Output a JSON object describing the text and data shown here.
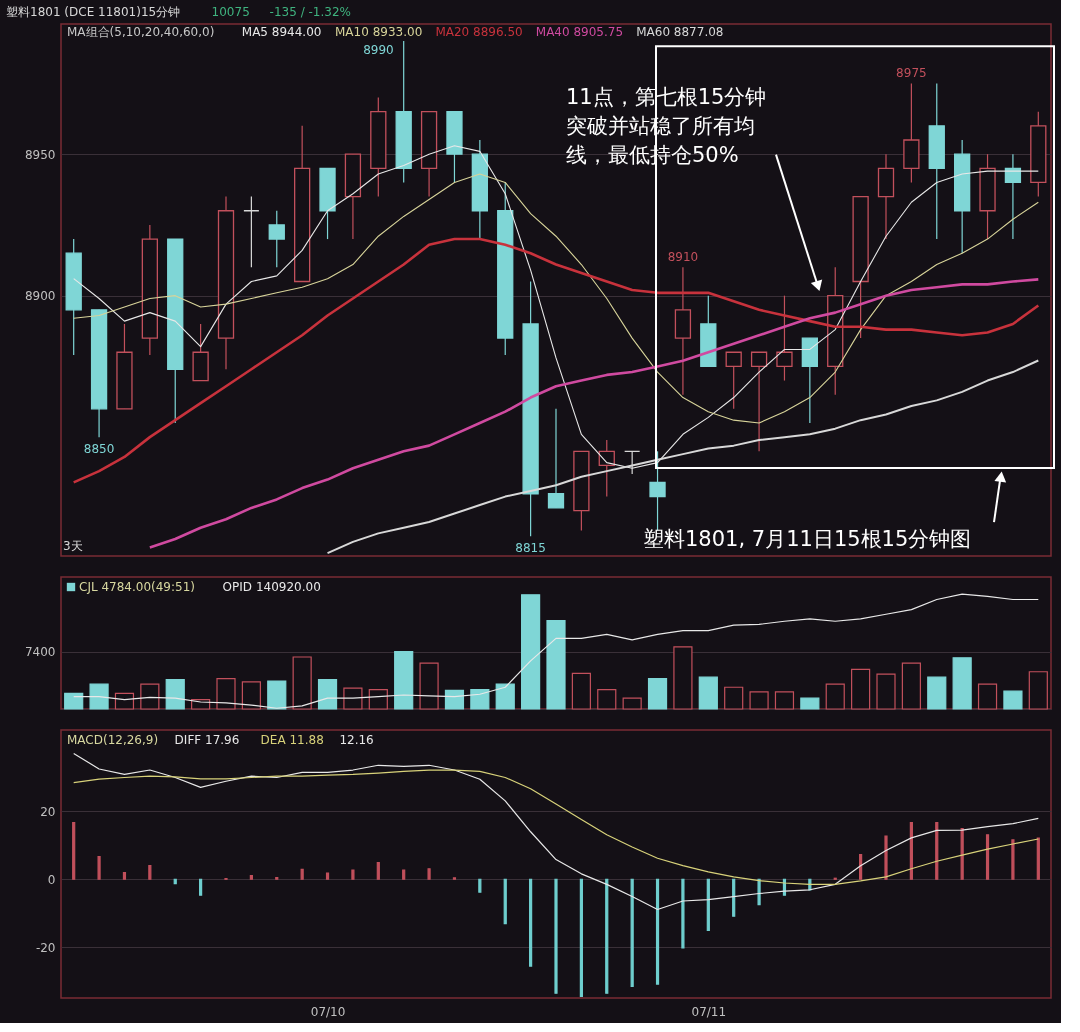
{
  "chart_data": [
    {
      "type": "candlestick",
      "title": "塑料1801 (DCE 11801)15分钟",
      "legend_title": "MA组合(5,10,20,40,60,0)",
      "legend": "top left",
      "grid": "y",
      "categories": [
        null,
        null,
        null,
        null,
        null,
        null,
        null,
        null,
        null,
        null,
        null,
        null,
        null,
        null,
        null,
        null,
        null,
        null,
        null,
        null,
        null,
        null,
        null,
        null,
        null,
        null,
        null,
        null,
        null,
        null,
        null,
        null,
        null,
        null,
        null,
        null,
        null,
        null,
        null
      ],
      "ohlc": [
        [
          8915,
          8920,
          8879,
          8895
        ],
        [
          8895,
          8895,
          8850,
          8860
        ],
        [
          8860,
          8890,
          8860,
          8880
        ],
        [
          8885,
          8925,
          8879,
          8920
        ],
        [
          8920,
          8920,
          8855,
          8874
        ],
        [
          8870,
          8890,
          8870,
          8880
        ],
        [
          8885,
          8935,
          8874,
          8930
        ],
        [
          8930,
          8935,
          8910,
          8930
        ],
        [
          8925,
          8930,
          8910,
          8920
        ],
        [
          8905,
          8960,
          8905,
          8945
        ],
        [
          8945,
          8945,
          8920,
          8930
        ],
        [
          8935,
          8950,
          8920,
          8950
        ],
        [
          8945,
          8970,
          8935,
          8965
        ],
        [
          8965,
          8990,
          8940,
          8945
        ],
        [
          8945,
          8965,
          8935,
          8965
        ],
        [
          8965,
          8965,
          8940,
          8950
        ],
        [
          8950,
          8955,
          8920,
          8930
        ],
        [
          8930,
          8940,
          8879,
          8885
        ],
        [
          8890,
          8905,
          8815,
          8830
        ],
        [
          8830,
          8860,
          8825,
          8825
        ],
        [
          8824,
          8845,
          8817,
          8845
        ],
        [
          8840,
          8849,
          8829,
          8845
        ],
        [
          8845,
          8845,
          8837,
          8845
        ],
        [
          8834,
          8845,
          8817,
          8829
        ],
        [
          8885,
          8910,
          8865,
          8895
        ],
        [
          8890,
          8900,
          8875,
          8875
        ],
        [
          8875,
          8880,
          8860,
          8880
        ],
        [
          8875,
          8880,
          8845,
          8880
        ],
        [
          8875,
          8900,
          8870,
          8880
        ],
        [
          8885,
          8885,
          8855,
          8875
        ],
        [
          8875,
          8910,
          8865,
          8900
        ],
        [
          8905,
          8935,
          8885,
          8935
        ],
        [
          8935,
          8950,
          8920,
          8945
        ],
        [
          8945,
          8975,
          8940,
          8955
        ],
        [
          8960,
          8975,
          8920,
          8945
        ],
        [
          8950,
          8955,
          8915,
          8930
        ],
        [
          8930,
          8950,
          8920,
          8945
        ],
        [
          8945,
          8950,
          8920,
          8940
        ],
        [
          8940,
          8965,
          8935,
          8960
        ]
      ],
      "colors": [
        "#7fd6d6",
        "#7fd6d6",
        "#c2505c",
        "#c2505c",
        "#7fd6d6",
        "#c2505c",
        "#c2505c",
        "#d8d8d8",
        "#7fd6d6",
        "#c2505c",
        "#7fd6d6",
        "#c2505c",
        "#c2505c",
        "#7fd6d6",
        "#c2505c",
        "#7fd6d6",
        "#7fd6d6",
        "#7fd6d6",
        "#7fd6d6",
        "#7fd6d6",
        "#c2505c",
        "#c2505c",
        "#d8d8d8",
        "#7fd6d6",
        "#c2505c",
        "#7fd6d6",
        "#c2505c",
        "#c2505c",
        "#c2505c",
        "#7fd6d6",
        "#c2505c",
        "#c2505c",
        "#c2505c",
        "#c2505c",
        "#7fd6d6",
        "#7fd6d6",
        "#c2505c",
        "#7fd6d6",
        "#c2505c"
      ],
      "value_labels": [
        null,
        "8850",
        null,
        null,
        null,
        null,
        null,
        null,
        null,
        null,
        null,
        null,
        null,
        "8990",
        null,
        null,
        null,
        null,
        "8815",
        null,
        null,
        null,
        null,
        null,
        "8910",
        null,
        null,
        null,
        null,
        null,
        null,
        null,
        null,
        "8975",
        null,
        null,
        null,
        null,
        null
      ],
      "series": [
        {
          "name": "MA5 8944.00",
          "type": "line",
          "color": "#e8e8e8",
          "values": [
            8906,
            8899,
            8891,
            8894,
            8891,
            8882,
            8897,
            8905,
            8907,
            8916,
            8930,
            8936,
            8943,
            8946,
            8950,
            8953,
            8951,
            8936,
            8909,
            8878,
            8851,
            8841,
            8839,
            8841,
            8851,
            8857,
            8864,
            8873,
            8881,
            8881,
            8888,
            8905,
            8921,
            8933,
            8940,
            8943,
            8944,
            8944,
            8944
          ]
        },
        {
          "name": "MA10 8933.00",
          "type": "line",
          "color": "#d8d49a",
          "values": [
            8892,
            8893,
            8896,
            8899,
            8900,
            8896,
            8897,
            8899,
            8901,
            8903,
            8906,
            8911,
            8921,
            8928,
            8934,
            8940,
            8943,
            8940,
            8929,
            8921,
            8911,
            8899,
            8885,
            8873,
            8864,
            8859,
            8856,
            8855,
            8859,
            8864,
            8873,
            8888,
            8900,
            8905,
            8911,
            8915,
            8920,
            8927,
            8933
          ]
        },
        {
          "name": "MA20 8896.50",
          "type": "line",
          "color": "#c8323c",
          "values": [
            8834,
            8838,
            8843,
            8850,
            8856,
            8862,
            8868,
            8874,
            8880,
            8886,
            8893,
            8899,
            8905,
            8911,
            8918,
            8920,
            8920,
            8918,
            8915,
            8911,
            8908,
            8905,
            8902,
            8901,
            8901,
            8901,
            8898,
            8895,
            8893,
            8891,
            8889,
            8889,
            8888,
            8888,
            8887,
            8886,
            8887,
            8890,
            8896.5
          ]
        },
        {
          "name": "MA40 8905.75",
          "type": "line",
          "color": "#d04aa0",
          "values": [
            null,
            null,
            null,
            8811,
            8814,
            8818,
            8821,
            8825,
            8828,
            8832,
            8835,
            8839,
            8842,
            8845,
            8847,
            8851,
            8855,
            8859,
            8864,
            8868,
            8870,
            8872,
            8873,
            8875,
            8877,
            8880,
            8883,
            8886,
            8889,
            8892,
            8894,
            8897,
            8900,
            8902,
            8903,
            8904,
            8904,
            8905,
            8905.75
          ]
        },
        {
          "name": "MA60 8877.08",
          "type": "line",
          "color": "#d8d8d8",
          "values": [
            null,
            null,
            null,
            null,
            null,
            null,
            null,
            null,
            null,
            null,
            8809,
            8813,
            8816,
            8818,
            8820,
            8823,
            8826,
            8829,
            8831,
            8833,
            8836,
            8838,
            8840,
            8842,
            8844,
            8846,
            8847,
            8849,
            8850,
            8851,
            8853,
            8856,
            8858,
            8861,
            8863,
            8866,
            8870,
            8873,
            8877.08
          ]
        }
      ],
      "ylim": [
        8808,
        8996
      ],
      "yticks": [
        8900,
        8950
      ],
      "annotations": [
        "10075",
        "-135 / -1.32%",
        "3天",
        "11点，第七根15分钟突破并站稳了所有均线，最低持仓50%",
        "塑料1801, 7月11日15根15分钟图"
      ]
    },
    {
      "type": "bar",
      "legend": "top left",
      "grid": "y",
      "categories": [
        null,
        null,
        null,
        null,
        null,
        null,
        null,
        null,
        null,
        null,
        null,
        null,
        null,
        null,
        null,
        null,
        null,
        null,
        null,
        null,
        null,
        null,
        null,
        null,
        null,
        null,
        null,
        null,
        null,
        null,
        null,
        null,
        null,
        null,
        null,
        null,
        null,
        null,
        null
      ],
      "series": [
        {
          "name": "CJL 4784.00(49:51)",
          "type": "bar",
          "values": [
            2000,
            3200,
            2000,
            3200,
            3800,
            1200,
            3900,
            3500,
            3600,
            6700,
            3800,
            2700,
            2500,
            7400,
            5900,
            2400,
            2500,
            3200,
            14700,
            11400,
            4600,
            2500,
            1400,
            3900,
            8000,
            4100,
            2800,
            2200,
            2200,
            1400,
            3200,
            5100,
            4500,
            5900,
            4100,
            6600,
            3200,
            2300,
            4800
          ],
          "colors": [
            "#7fd6d6",
            "#7fd6d6",
            "#c2505c",
            "#c2505c",
            "#7fd6d6",
            "#c2505c",
            "#c2505c",
            "#c2505c",
            "#7fd6d6",
            "#c2505c",
            "#7fd6d6",
            "#c2505c",
            "#c2505c",
            "#7fd6d6",
            "#c2505c",
            "#7fd6d6",
            "#7fd6d6",
            "#7fd6d6",
            "#7fd6d6",
            "#7fd6d6",
            "#c2505c",
            "#c2505c",
            "#c2505c",
            "#7fd6d6",
            "#c2505c",
            "#7fd6d6",
            "#c2505c",
            "#c2505c",
            "#c2505c",
            "#7fd6d6",
            "#c2505c",
            "#c2505c",
            "#c2505c",
            "#c2505c",
            "#7fd6d6",
            "#7fd6d6",
            "#c2505c",
            "#7fd6d6",
            "#c2505c"
          ]
        },
        {
          "name": "OPID 140920.00",
          "type": "line",
          "color": "#e8e8e8",
          "values": [
            1600,
            1600,
            1200,
            1500,
            1400,
            900,
            800,
            500,
            100,
            400,
            1400,
            1400,
            1600,
            1800,
            1700,
            1600,
            1900,
            2800,
            6200,
            9100,
            9100,
            9600,
            8900,
            9600,
            10100,
            10100,
            10800,
            10900,
            11300,
            11600,
            11300,
            11600,
            12200,
            12800,
            14100,
            14800,
            14500,
            14100,
            14100
          ]
        }
      ],
      "ylim": [
        0,
        17000
      ],
      "yticks": [
        {
          "value": 0,
          "label": null
        },
        7400
      ]
    },
    {
      "type": "bar",
      "title": "MACD(12,26,9)",
      "legend": "top left",
      "grid": "y",
      "categories": [
        null,
        null,
        null,
        null,
        null,
        null,
        null,
        null,
        null,
        null,
        "07/10",
        null,
        null,
        null,
        null,
        null,
        null,
        null,
        null,
        null,
        null,
        null,
        null,
        null,
        null,
        "07/11",
        null,
        null,
        null,
        null,
        null,
        null,
        null,
        null,
        null,
        null,
        null,
        null,
        null
      ],
      "series": [
        {
          "type": "bar",
          "values": [
            16.7,
            6.7,
            2,
            4,
            -1.3,
            -4.7,
            0.2,
            1.1,
            0.5,
            2.9,
            1.8,
            2.7,
            4.9,
            2.7,
            3.1,
            0.4,
            -3.8,
            -13.1,
            -25.6,
            -33.6,
            -34.5,
            -33.6,
            -31.6,
            -30.9,
            -20.2,
            -15.1,
            -10.9,
            -7.5,
            -4.7,
            -3.1,
            0.3,
            7.3,
            12.7,
            16.7,
            16.7,
            14.9,
            13.1,
            11.6,
            12.16
          ],
          "colors": [
            "#c2505c",
            "#c2505c",
            "#c2505c",
            "#c2505c",
            "#6fcfcf",
            "#6fcfcf",
            "#c2505c",
            "#c2505c",
            "#c2505c",
            "#c2505c",
            "#c2505c",
            "#c2505c",
            "#c2505c",
            "#c2505c",
            "#c2505c",
            "#c2505c",
            "#6fcfcf",
            "#6fcfcf",
            "#6fcfcf",
            "#6fcfcf",
            "#6fcfcf",
            "#6fcfcf",
            "#6fcfcf",
            "#6fcfcf",
            "#6fcfcf",
            "#6fcfcf",
            "#6fcfcf",
            "#6fcfcf",
            "#6fcfcf",
            "#6fcfcf",
            "#c2505c",
            "#c2505c",
            "#c2505c",
            "#c2505c",
            "#c2505c",
            "#c2505c",
            "#c2505c",
            "#c2505c",
            "#c2505c"
          ]
        },
        {
          "name": "DIFF 17.96",
          "type": "line",
          "color": "#e8e8e8",
          "values": [
            37.1,
            32.5,
            30.9,
            32.2,
            30,
            27.1,
            28.9,
            30.4,
            30,
            31.5,
            31.5,
            32.2,
            33.6,
            33.3,
            33.6,
            32.2,
            29.5,
            23.1,
            14,
            5.8,
            1.6,
            -1.5,
            -5.1,
            -8.9,
            -6.4,
            -6,
            -5.1,
            -4.2,
            -3.5,
            -3.1,
            -1.5,
            4,
            8.5,
            12.2,
            14.4,
            14.5,
            15.5,
            16.4,
            17.96
          ]
        },
        {
          "name": "DEA 11.88",
          "type": "line",
          "color": "#d8d27a",
          "values": [
            28.5,
            29.5,
            30,
            30.4,
            30.2,
            29.6,
            29.6,
            30,
            30.4,
            30.4,
            30.7,
            30.9,
            31.3,
            31.8,
            32.2,
            32.2,
            31.8,
            30,
            26.7,
            22.2,
            17.6,
            13.1,
            9.5,
            6.2,
            4,
            2.2,
            0.7,
            -0.4,
            -1.1,
            -1.5,
            -1.5,
            -0.5,
            0.7,
            3.1,
            5.3,
            7.1,
            8.9,
            10.4,
            11.88
          ]
        }
      ],
      "ylim": [
        -35,
        44
      ],
      "yticks": [
        -20,
        0,
        20
      ],
      "annotations": [
        "12.16"
      ]
    }
  ]
}
